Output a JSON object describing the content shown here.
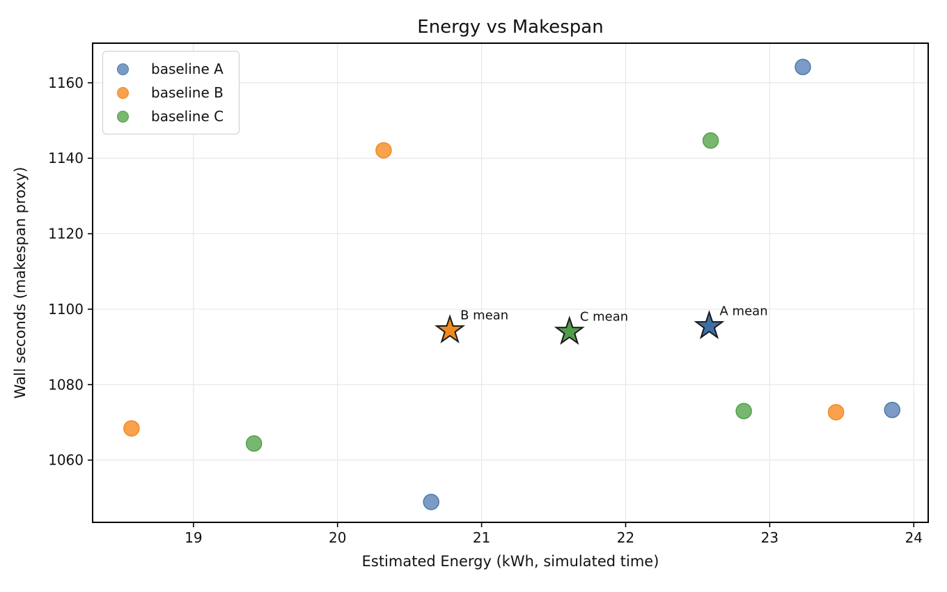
{
  "chart_data": {
    "type": "scatter",
    "title": "Energy vs Makespan",
    "xlabel": "Estimated Energy (kWh, simulated time)",
    "ylabel": "Wall seconds (makespan proxy)",
    "xlim": [
      18.3,
      24.1
    ],
    "ylim": [
      1043.5,
      1170.5
    ],
    "xticks": [
      19,
      20,
      21,
      22,
      23,
      24
    ],
    "yticks": [
      1060,
      1080,
      1100,
      1120,
      1140,
      1160
    ],
    "grid": true,
    "legend_position": "upper left",
    "series": [
      {
        "name": "baseline A",
        "marker": "circle",
        "fill": "#7b9bc6",
        "edge": "#4d79a8",
        "points": [
          {
            "x": 23.23,
            "y": 1164.2
          },
          {
            "x": 20.65,
            "y": 1048.9
          },
          {
            "x": 23.85,
            "y": 1073.3
          }
        ],
        "mean": {
          "label": "A mean",
          "x": 22.58,
          "y": 1095.5,
          "marker": "star",
          "fill": "#3d6fa4",
          "edge": "#1a1a1a"
        }
      },
      {
        "name": "baseline B",
        "marker": "circle",
        "fill": "#f9a14d",
        "edge": "#ef8a25",
        "points": [
          {
            "x": 20.32,
            "y": 1142.1
          },
          {
            "x": 18.57,
            "y": 1068.4
          },
          {
            "x": 23.46,
            "y": 1072.7
          }
        ],
        "mean": {
          "label": "B mean",
          "x": 20.78,
          "y": 1094.4,
          "marker": "star",
          "fill": "#ee8a1f",
          "edge": "#1a1a1a"
        }
      },
      {
        "name": "baseline C",
        "marker": "circle",
        "fill": "#78b76f",
        "edge": "#539f4b",
        "points": [
          {
            "x": 22.59,
            "y": 1144.7
          },
          {
            "x": 19.42,
            "y": 1064.4
          },
          {
            "x": 22.82,
            "y": 1073.0
          }
        ],
        "mean": {
          "label": "C mean",
          "x": 21.61,
          "y": 1094.0,
          "marker": "star",
          "fill": "#519c49",
          "edge": "#1a1a1a"
        }
      }
    ],
    "colors": {
      "grid": "#e7e7e7",
      "spine": "#000000",
      "text": "#111111",
      "legend_border": "#cccccc"
    }
  }
}
